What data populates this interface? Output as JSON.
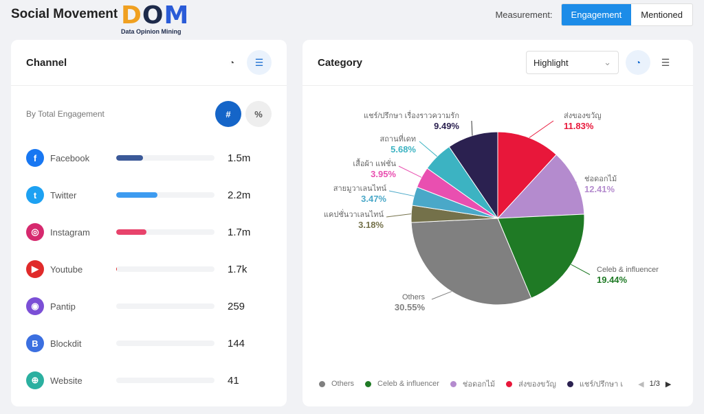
{
  "header": {
    "title": "Social Movement",
    "logo_text": "DOM",
    "logo_sub": "Data Opinion Mining",
    "measurement_label": "Measurement:",
    "options": [
      "Engagement",
      "Mentioned"
    ]
  },
  "channel": {
    "title": "Channel",
    "by_label": "By Total Engagement",
    "toggle": [
      "#",
      "%"
    ],
    "items": [
      {
        "name": "Facebook",
        "value": "1.5m",
        "fraction": 0.27,
        "color": "#3b5998",
        "icon_color": "#1877f2",
        "glyph": "f"
      },
      {
        "name": "Twitter",
        "value": "2.2m",
        "fraction": 0.42,
        "color": "#3d9bf0",
        "icon_color": "#1da1f2",
        "glyph": "t"
      },
      {
        "name": "Instagram",
        "value": "1.7m",
        "fraction": 0.31,
        "color": "#e8436b",
        "icon_color": "#d6296e",
        "glyph": "◎"
      },
      {
        "name": "Youtube",
        "value": "1.7k",
        "fraction": 0.01,
        "color": "#e02a2a",
        "icon_color": "#e02a2a",
        "glyph": "▶"
      },
      {
        "name": "Pantip",
        "value": "259",
        "fraction": 0.0,
        "color": "#7b4fd6",
        "icon_color": "#7b4fd6",
        "glyph": "◉"
      },
      {
        "name": "Blockdit",
        "value": "144",
        "fraction": 0.0,
        "color": "#3b6fe0",
        "icon_color": "#3b6fe0",
        "glyph": "B"
      },
      {
        "name": "Website",
        "value": "41",
        "fraction": 0.0,
        "color": "#2bb0a0",
        "icon_color": "#2bb0a0",
        "glyph": "⊕"
      }
    ]
  },
  "category": {
    "title": "Category",
    "select": "Highlight",
    "page": "1/3"
  },
  "chart_data": {
    "type": "pie",
    "slices": [
      {
        "label": "ส่งของขวัญ",
        "value": 11.83,
        "pct": "11.83%",
        "color": "#e8173a"
      },
      {
        "label": "ช่อดอกไม้",
        "value": 12.41,
        "pct": "12.41%",
        "color": "#b48bce"
      },
      {
        "label": "Celeb & influencer",
        "value": 19.44,
        "pct": "19.44%",
        "color": "#1f7a25"
      },
      {
        "label": "Others",
        "value": 30.55,
        "pct": "30.55%",
        "color": "#808080"
      },
      {
        "label": "แคปชั่นวาเลนไทน์",
        "value": 3.18,
        "pct": "3.18%",
        "color": "#74714a"
      },
      {
        "label": "สายมูวาเลนไทน์",
        "value": 3.47,
        "pct": "3.47%",
        "color": "#4aa8c8"
      },
      {
        "label": "เสื้อผ้า แฟชั่น",
        "value": 3.95,
        "pct": "3.95%",
        "color": "#e94fb0"
      },
      {
        "label": "สถานที่เดท",
        "value": 5.68,
        "pct": "5.68%",
        "color": "#3cb3c2"
      },
      {
        "label": "แชร์/ปรึกษา เรื่องราวความรัก",
        "value": 9.49,
        "pct": "9.49%",
        "color": "#2b2150"
      }
    ],
    "legend": [
      "Others",
      "Celeb & influencer",
      "ช่อดอกไม้",
      "ส่งของขวัญ",
      "แชร์/ปรึกษา เ"
    ],
    "legend_colors": [
      "#808080",
      "#1f7a25",
      "#b48bce",
      "#e8173a",
      "#2b2150"
    ]
  }
}
